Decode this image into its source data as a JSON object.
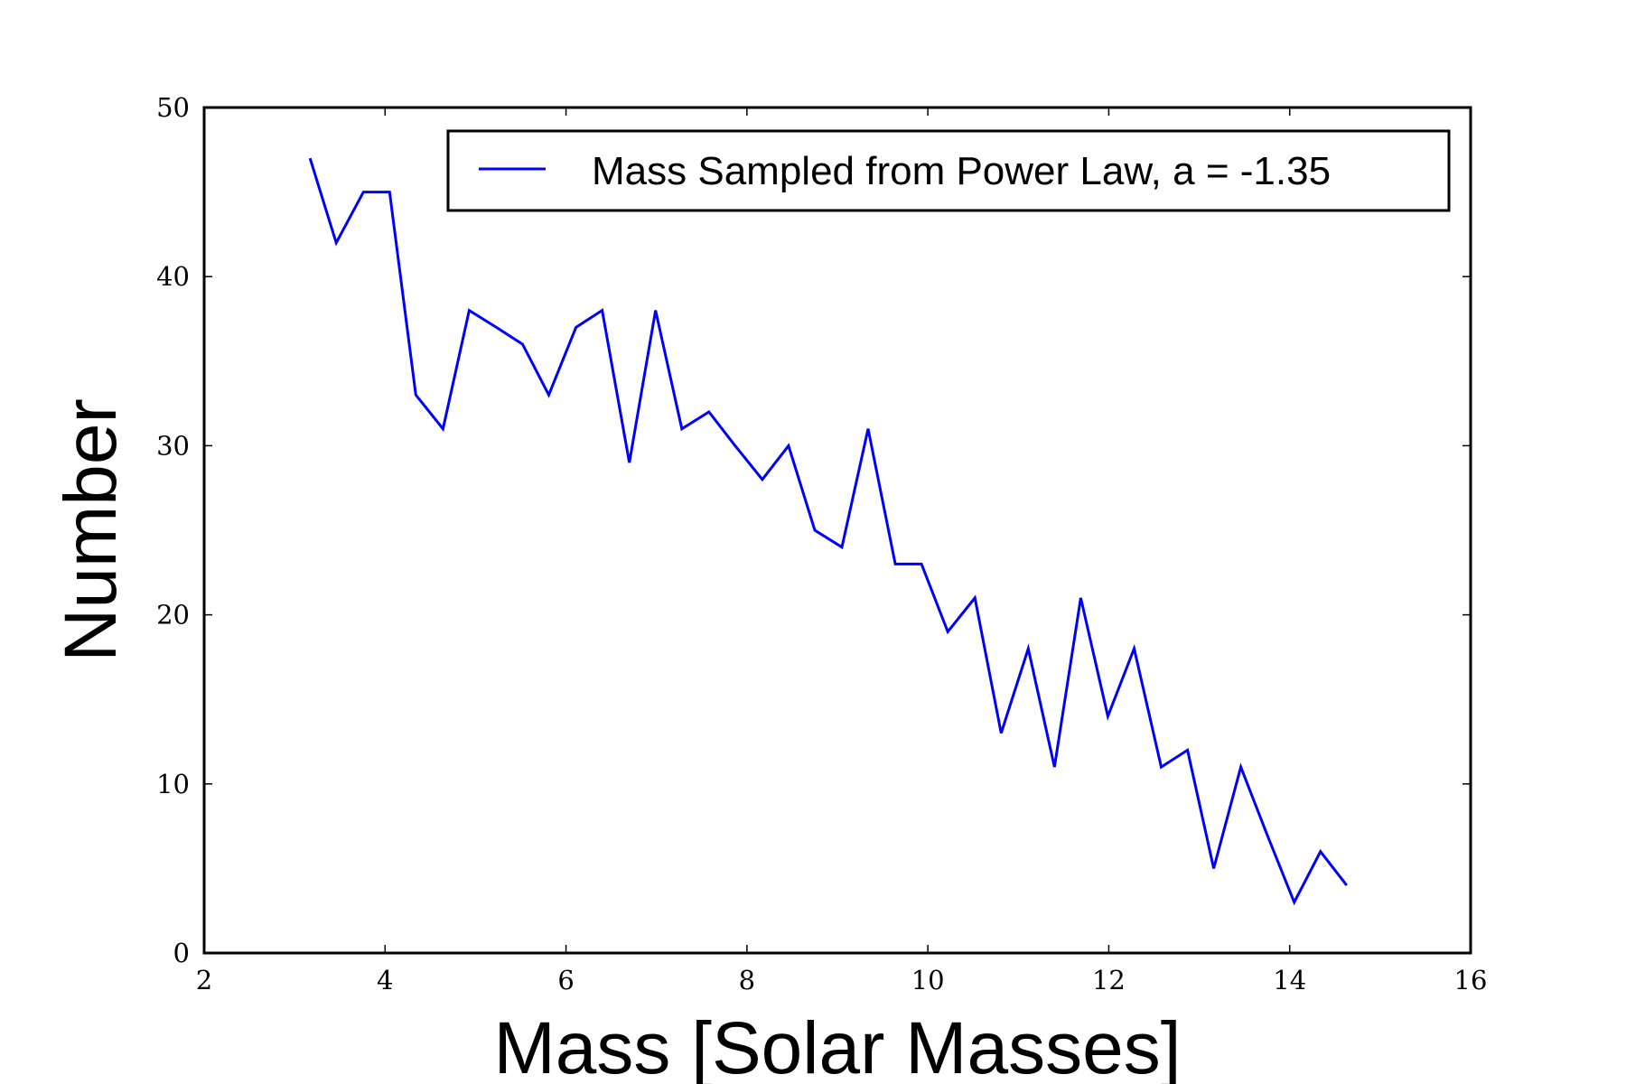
{
  "chart_data": {
    "type": "line",
    "xlabel": "Mass [Solar Masses]",
    "ylabel": "Number",
    "xlim": [
      2,
      16
    ],
    "ylim": [
      0,
      50
    ],
    "xticks": [
      "2",
      "4",
      "6",
      "8",
      "10",
      "12",
      "14",
      "16"
    ],
    "yticks": [
      "0",
      "10",
      "20",
      "30",
      "40",
      "50"
    ],
    "grid": false,
    "legend_position": "top-right",
    "series": [
      {
        "name": "Mass Sampled from Power Law, a = -1.35",
        "color": "#0000ff",
        "x": [
          3.17,
          3.46,
          3.76,
          4.05,
          4.34,
          4.64,
          4.93,
          5.23,
          5.52,
          5.81,
          6.11,
          6.4,
          6.7,
          6.99,
          7.28,
          7.58,
          7.87,
          8.17,
          8.46,
          8.75,
          9.05,
          9.34,
          9.64,
          9.93,
          10.22,
          10.52,
          10.81,
          11.11,
          11.4,
          11.69,
          11.99,
          12.28,
          12.58,
          12.87,
          13.16,
          13.46,
          13.75,
          14.05,
          14.34,
          14.63
        ],
        "y": [
          47,
          42,
          45,
          45,
          33,
          31,
          38,
          37,
          36,
          33,
          37,
          38,
          29,
          38,
          31,
          32,
          30,
          28,
          30,
          25,
          24,
          31,
          23,
          23,
          19,
          21,
          13,
          18,
          11,
          21,
          14,
          18,
          11,
          12,
          5,
          11,
          7,
          3,
          6,
          4
        ]
      }
    ]
  }
}
